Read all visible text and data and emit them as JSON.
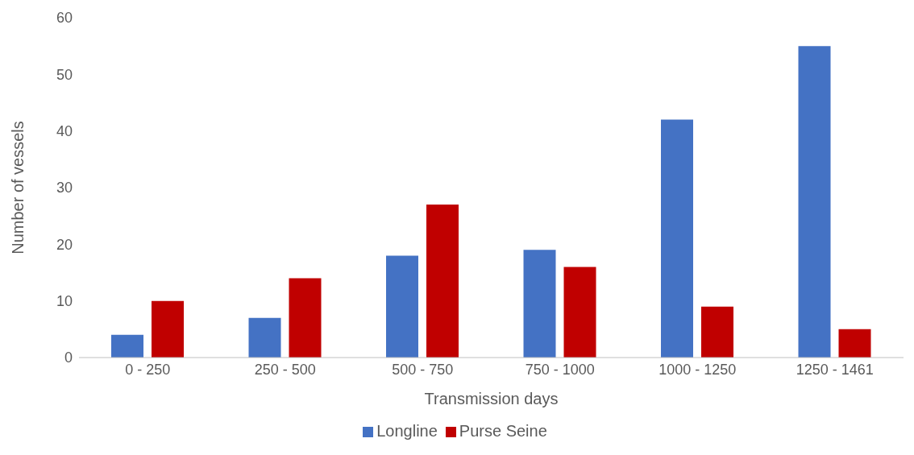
{
  "chart_data": {
    "type": "bar",
    "xlabel": "Transmission days",
    "ylabel": "Number of vessels",
    "categories": [
      "0 - 250",
      "250 - 500",
      "500 - 750",
      "750 - 1000",
      "1000 - 1250",
      "1250 - 1461"
    ],
    "series": [
      {
        "name": "Longline",
        "color": "#4472c4",
        "values": [
          4,
          7,
          18,
          19,
          42,
          55
        ]
      },
      {
        "name": "Purse Seine",
        "color": "#c00000",
        "values": [
          10,
          14,
          27,
          16,
          9,
          5
        ]
      }
    ],
    "ylim": [
      0,
      60
    ],
    "yticks": [
      0,
      10,
      20,
      30,
      40,
      50,
      60
    ],
    "grid": false,
    "legend": "bottom"
  }
}
